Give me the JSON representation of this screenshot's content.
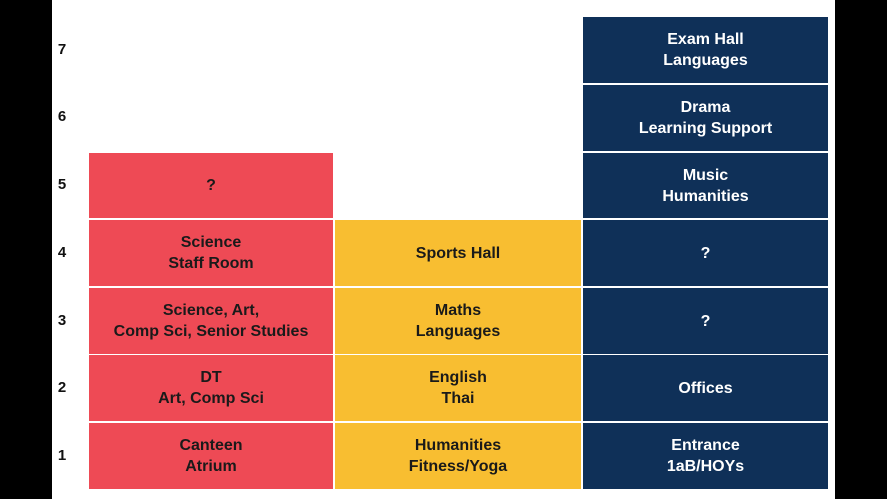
{
  "floors": [
    "1",
    "2",
    "3",
    "4",
    "5",
    "6",
    "7"
  ],
  "colors": {
    "building_a": "#ee4a55",
    "building_b": "#f8be31",
    "building_c": "#0f3058",
    "background": "#ffffff",
    "frame": "#000000"
  },
  "building_a": {
    "f1": {
      "line1": "Canteen",
      "line2": "Atrium"
    },
    "f2": {
      "line1": "DT",
      "line2": "Art, Comp Sci"
    },
    "f3": {
      "line1": "Science, Art,",
      "line2": "Comp Sci, Senior Studies"
    },
    "f4": {
      "line1": "Science",
      "line2": "Staff Room"
    },
    "f5": {
      "line1": "?"
    }
  },
  "building_b": {
    "f1": {
      "line1": "Humanities",
      "line2": "Fitness/Yoga"
    },
    "f2": {
      "line1": "English",
      "line2": "Thai"
    },
    "f3": {
      "line1": "Maths",
      "line2": "Languages"
    },
    "f4": {
      "line1": "Sports Hall"
    }
  },
  "building_c": {
    "f1": {
      "line1": "Entrance",
      "line2": "1aB/HOYs"
    },
    "f2": {
      "line1": "Offices"
    },
    "f3": {
      "line1": "?"
    },
    "f4": {
      "line1": "?"
    },
    "f5": {
      "line1": "Music",
      "line2": "Humanities"
    },
    "f6": {
      "line1": "Drama",
      "line2": "Learning Support"
    },
    "f7": {
      "line1": "Exam Hall",
      "line2": "Languages"
    }
  }
}
